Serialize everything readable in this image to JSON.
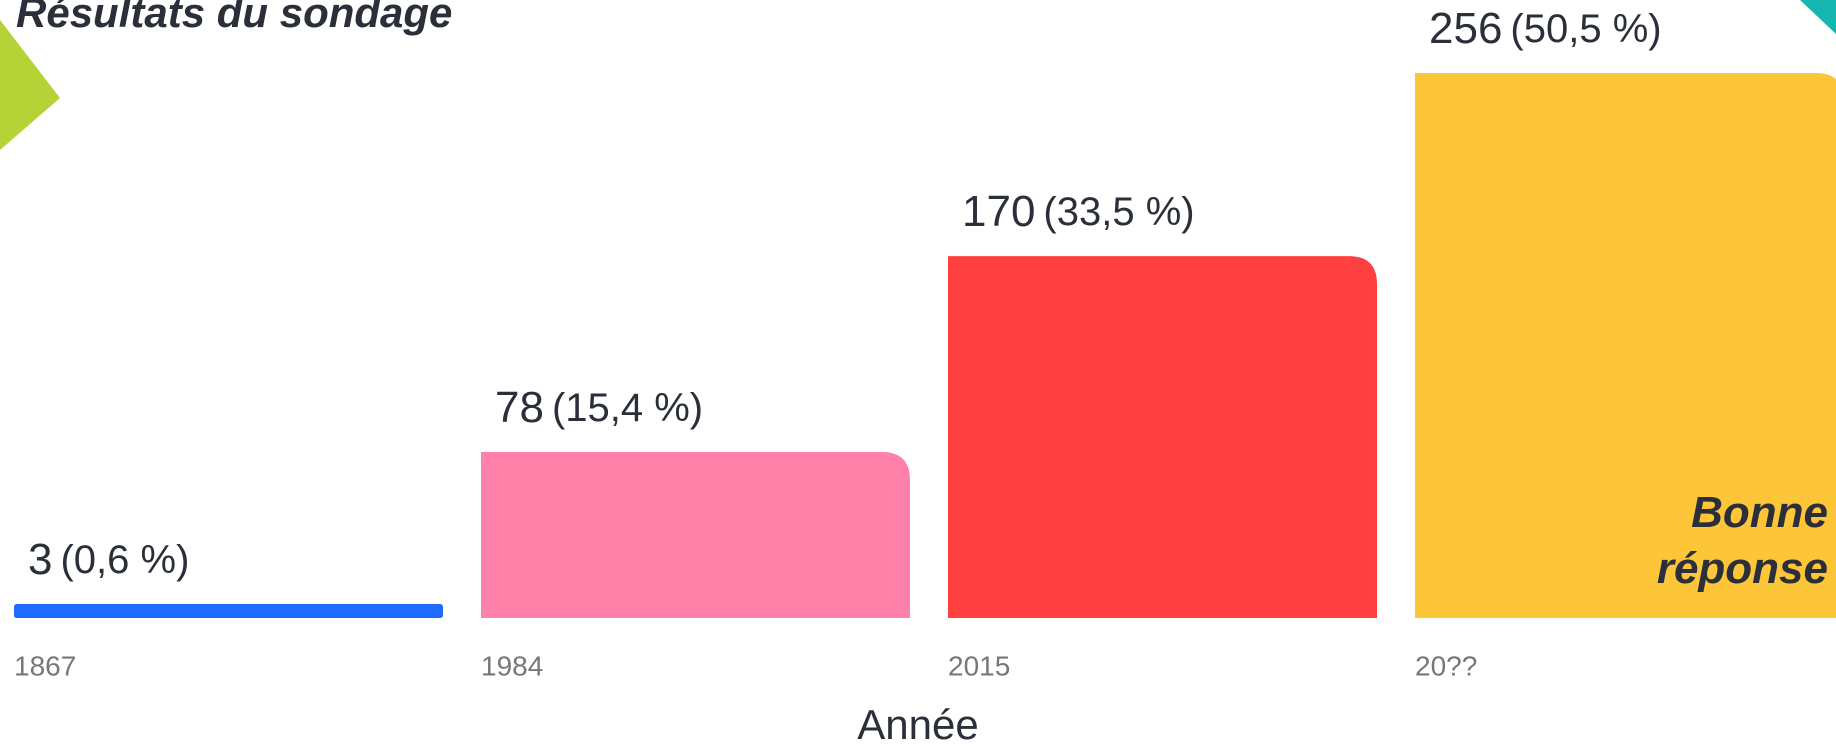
{
  "chart_data": {
    "type": "bar",
    "title": "Résultats du sondage",
    "categories": [
      "1867",
      "1984",
      "2015",
      "20??"
    ],
    "values": [
      3,
      78,
      170,
      256
    ],
    "percents": [
      0.6,
      15.4,
      33.5,
      50.5
    ],
    "percent_labels": [
      "(0,6 %)",
      "(15,4 %)",
      "(33,5 %)",
      "(50,5 %)"
    ],
    "colors": [
      "#1f6bff",
      "#ff80a8",
      "#ff4040",
      "#fdc538"
    ],
    "ylim": [
      0,
      256
    ],
    "x_label": "Année",
    "annotation": "Bonne réponse"
  }
}
